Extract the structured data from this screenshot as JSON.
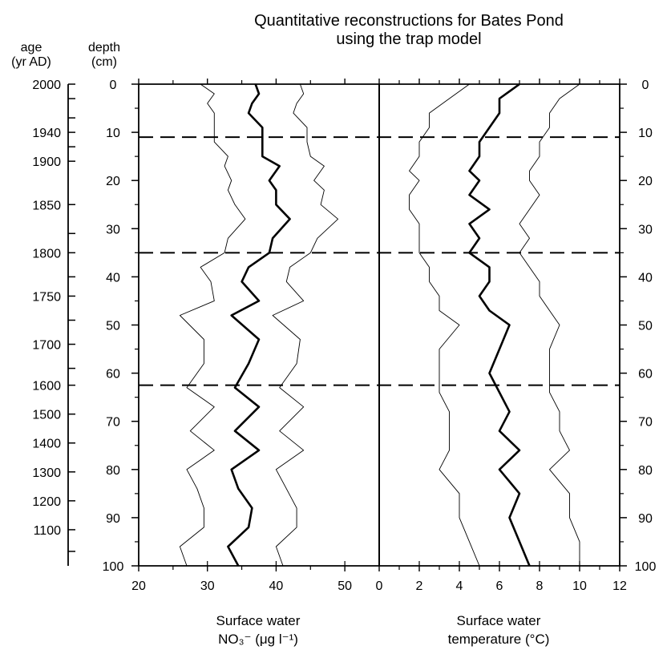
{
  "chart_data": {
    "type": "line",
    "title_line1": "Quantitative reconstructions for Bates Pond",
    "title_line2": "using the trap model",
    "age_axis": {
      "label_line1": "age",
      "label_line2": "(yr AD)",
      "ticks": [
        {
          "label": "2000",
          "depth": 0
        },
        {
          "label": "1940",
          "depth": 10
        },
        {
          "label": "1900",
          "depth": 16
        },
        {
          "label": "1850",
          "depth": 25
        },
        {
          "label": "1800",
          "depth": 35
        },
        {
          "label": "1750",
          "depth": 44
        },
        {
          "label": "1700",
          "depth": 54
        },
        {
          "label": "1600",
          "depth": 62.5
        },
        {
          "label": "1500",
          "depth": 68.5
        },
        {
          "label": "1400",
          "depth": 74.5
        },
        {
          "label": "1300",
          "depth": 80.5
        },
        {
          "label": "1200",
          "depth": 86.5
        },
        {
          "label": "1100",
          "depth": 92.5
        }
      ],
      "minor_depths": [
        3,
        7,
        13,
        31,
        40,
        49,
        59,
        97
      ]
    },
    "depth_axis": {
      "label_line1": "depth",
      "label_line2": "(cm)",
      "ticks": [
        0,
        10,
        20,
        30,
        40,
        50,
        60,
        70,
        80,
        90,
        100
      ],
      "range": [
        0,
        100
      ]
    },
    "dashed_depths": [
      11,
      35,
      62.5
    ],
    "panels": [
      {
        "name": "nitrate",
        "xlabel_line1": "Surface water",
        "xlabel_line2": "NO₃⁻ (μg l⁻¹)",
        "xlim": [
          20,
          55
        ],
        "xticks": [
          20,
          30,
          40,
          50
        ],
        "xtick_labels": [
          "20",
          "30",
          "40",
          "50"
        ],
        "series": [
          {
            "role": "lower",
            "depths": [
              0,
              2,
              4,
              6,
              9,
              12,
              15,
              17,
              20,
              22,
              25,
              28,
              32,
              35,
              38,
              41,
              45,
              48,
              53,
              58,
              63,
              67,
              72,
              76,
              80,
              84,
              88,
              92,
              96,
              100
            ],
            "values": [
              29,
              31,
              30,
              31,
              31,
              31,
              33,
              32.5,
              33.5,
              33,
              34,
              35.5,
              33,
              32.5,
              29,
              30.5,
              31,
              26,
              29.5,
              29.5,
              27,
              31,
              27.5,
              31,
              27,
              28.5,
              29.5,
              29.5,
              26,
              27
            ]
          },
          {
            "role": "estimate",
            "depths": [
              0,
              2,
              4,
              6,
              9,
              12,
              15,
              17,
              20,
              22,
              25,
              28,
              32,
              35,
              38,
              41,
              45,
              48,
              53,
              58,
              63,
              67,
              72,
              76,
              80,
              84,
              88,
              92,
              96,
              100
            ],
            "values": [
              37,
              37.5,
              36.5,
              36,
              38,
              38,
              38,
              40.5,
              39,
              40,
              40,
              42,
              39.5,
              39,
              36,
              35,
              37.5,
              33.5,
              37.5,
              36,
              34,
              37.5,
              34,
              37.5,
              33.5,
              34.5,
              36.5,
              36,
              33,
              34.5
            ]
          },
          {
            "role": "upper",
            "depths": [
              0,
              2,
              4,
              6,
              9,
              12,
              15,
              17,
              20,
              22,
              25,
              28,
              32,
              35,
              38,
              41,
              45,
              48,
              53,
              58,
              63,
              67,
              72,
              76,
              80,
              84,
              88,
              92,
              96,
              100
            ],
            "values": [
              43.5,
              44,
              43,
              42.5,
              44.5,
              44.5,
              45,
              47,
              45.5,
              47,
              46.5,
              49,
              46,
              45,
              42,
              41.5,
              44,
              39.5,
              43.5,
              43,
              40.5,
              44,
              40.5,
              44,
              40,
              41.5,
              43,
              43,
              40,
              41
            ]
          }
        ]
      },
      {
        "name": "temperature",
        "xlabel_line1": "Surface water",
        "xlabel_line2": "temperature (°C)",
        "xlim": [
          0,
          12
        ],
        "xticks": [
          0,
          2,
          4,
          6,
          8,
          10,
          12
        ],
        "xtick_labels": [
          "0",
          "2",
          "4",
          "6",
          "8",
          "10",
          "12"
        ],
        "series": [
          {
            "role": "lower",
            "depths": [
              0,
              3,
              6,
              9,
              12,
              15,
              18,
              20,
              23,
              26,
              29,
              32,
              35,
              38,
              41,
              44,
              47,
              50,
              55,
              60,
              64,
              68,
              72,
              76,
              80,
              85,
              90,
              95,
              100
            ],
            "values": [
              4.5,
              3.5,
              2.5,
              2.5,
              2,
              2,
              1.5,
              2,
              1.5,
              1.5,
              2,
              2,
              2,
              2.5,
              2.5,
              3,
              3,
              4,
              3,
              3,
              3,
              3.5,
              3.5,
              3.5,
              3,
              4,
              4,
              4.5,
              5
            ]
          },
          {
            "role": "estimate",
            "depths": [
              0,
              3,
              6,
              9,
              12,
              15,
              18,
              20,
              23,
              26,
              29,
              32,
              35,
              38,
              41,
              44,
              47,
              50,
              55,
              60,
              64,
              68,
              72,
              76,
              80,
              85,
              90,
              95,
              100
            ],
            "values": [
              7,
              6,
              6,
              5.5,
              5,
              5,
              4.5,
              5,
              4.5,
              5.5,
              4.5,
              5,
              4.5,
              5.5,
              5.5,
              5,
              5.5,
              6.5,
              6,
              5.5,
              6,
              6.5,
              6,
              7,
              6,
              7,
              6.5,
              7,
              7.5
            ]
          },
          {
            "role": "upper",
            "depths": [
              0,
              3,
              6,
              9,
              12,
              15,
              18,
              20,
              23,
              26,
              29,
              32,
              35,
              38,
              41,
              44,
              47,
              50,
              55,
              60,
              64,
              68,
              72,
              76,
              80,
              85,
              90,
              95,
              100
            ],
            "values": [
              10,
              9,
              8.5,
              8.5,
              8,
              8,
              7.5,
              7.5,
              8,
              7.5,
              7,
              7.5,
              7,
              7.5,
              8,
              8,
              8.5,
              9,
              8.5,
              8.5,
              8.5,
              9,
              9,
              9.5,
              8.5,
              9.5,
              9.5,
              10,
              10
            ]
          }
        ]
      }
    ]
  }
}
